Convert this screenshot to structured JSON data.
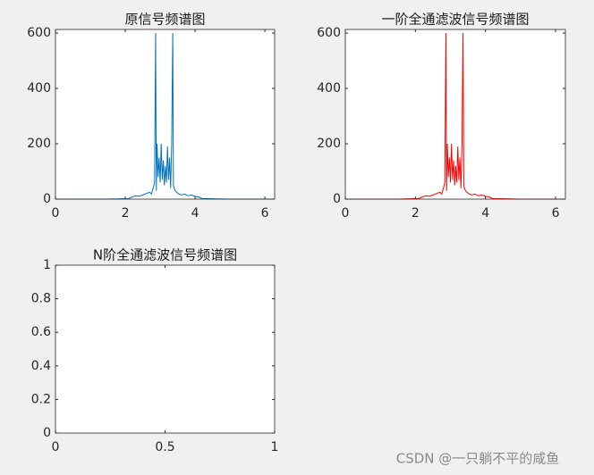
{
  "chart_data": [
    {
      "type": "line",
      "title": "原信号频谱图",
      "x": [
        0,
        1.5,
        2.1,
        2.2,
        2.3,
        2.4,
        2.5,
        2.6,
        2.7,
        2.75,
        2.8,
        2.84,
        2.87,
        2.89,
        2.91,
        2.94,
        2.97,
        3.0,
        3.03,
        3.06,
        3.09,
        3.12,
        3.15,
        3.18,
        3.21,
        3.24,
        3.27,
        3.3,
        3.33,
        3.36,
        3.38,
        3.4,
        3.43,
        3.47,
        3.52,
        3.6,
        3.7,
        3.8,
        3.9,
        4.0,
        4.1,
        4.2,
        5.0,
        6.28
      ],
      "series": [
        {
          "color": "#0072bd",
          "values": [
            0,
            0,
            2,
            8,
            12,
            10,
            15,
            20,
            25,
            18,
            40,
            60,
            600,
            30,
            200,
            80,
            150,
            60,
            200,
            70,
            140,
            50,
            120,
            60,
            190,
            70,
            150,
            40,
            200,
            600,
            50,
            40,
            30,
            25,
            20,
            15,
            18,
            12,
            15,
            10,
            8,
            2,
            0,
            0
          ]
        }
      ],
      "xlim": [
        0,
        6.28
      ],
      "xticks": [
        0,
        2,
        4,
        6
      ],
      "ylim": [
        0,
        613
      ],
      "yticks": [
        0,
        200,
        400,
        600
      ]
    },
    {
      "type": "line",
      "title": "一阶全通滤波信号频谱图",
      "x": [
        0,
        1.5,
        2.1,
        2.2,
        2.3,
        2.4,
        2.5,
        2.6,
        2.7,
        2.75,
        2.8,
        2.84,
        2.87,
        2.89,
        2.91,
        2.94,
        2.97,
        3.0,
        3.03,
        3.06,
        3.09,
        3.12,
        3.15,
        3.18,
        3.21,
        3.24,
        3.27,
        3.3,
        3.33,
        3.36,
        3.38,
        3.4,
        3.43,
        3.47,
        3.52,
        3.6,
        3.7,
        3.8,
        3.9,
        4.0,
        4.1,
        4.2,
        5.0,
        6.28
      ],
      "series": [
        {
          "color": "#ff0000",
          "values": [
            0,
            0,
            2,
            8,
            12,
            10,
            15,
            20,
            25,
            18,
            40,
            60,
            600,
            30,
            200,
            80,
            150,
            60,
            200,
            70,
            140,
            50,
            120,
            60,
            190,
            70,
            150,
            40,
            200,
            600,
            50,
            40,
            30,
            25,
            20,
            15,
            18,
            12,
            15,
            10,
            8,
            2,
            0,
            0
          ]
        }
      ],
      "xlim": [
        0,
        6.28
      ],
      "xticks": [
        0,
        2,
        4,
        6
      ],
      "ylim": [
        0,
        613
      ],
      "yticks": [
        0,
        200,
        400,
        600
      ]
    },
    {
      "type": "line",
      "title": "N阶全通滤波信号频谱图",
      "x": [],
      "series": [],
      "xlim": [
        0,
        1
      ],
      "xticks": [
        0,
        0.5,
        1
      ],
      "ylim": [
        0,
        1
      ],
      "yticks": [
        0,
        0.2,
        0.4,
        0.6,
        0.8,
        1
      ]
    }
  ],
  "watermark": "CSDN @一只躺不平的咸鱼"
}
